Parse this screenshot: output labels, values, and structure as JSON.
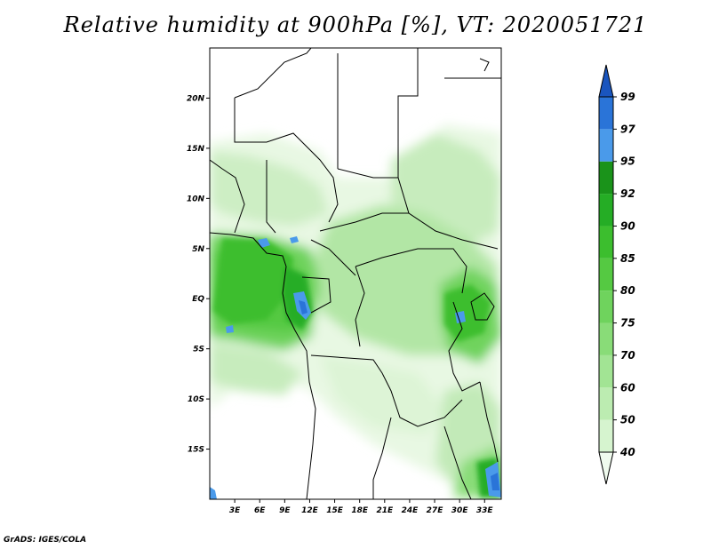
{
  "title": "Relative humidity at 900hPa [%], VT: 2020051721",
  "credit": "GrADS: IGES/COLA",
  "map": {
    "variable": "Relative humidity",
    "level": "900hPa",
    "lon_range": [
      0,
      35
    ],
    "lat_range": [
      -20,
      25
    ],
    "lon_ticks": [
      "3E",
      "6E",
      "9E",
      "12E",
      "15E",
      "18E",
      "21E",
      "24E",
      "27E",
      "30E",
      "33E"
    ],
    "lat_ticks": [
      "20N",
      "15N",
      "10N",
      "5N",
      "EQ",
      "5S",
      "10S",
      "15S"
    ]
  },
  "colorbar": {
    "levels": [
      "40",
      "50",
      "60",
      "70",
      "75",
      "80",
      "85",
      "90",
      "92",
      "95",
      "97",
      "99"
    ],
    "colors": [
      "#f0fbee",
      "#d6f4cf",
      "#bcecb1",
      "#a2e494",
      "#89dc78",
      "#6fd35d",
      "#55c942",
      "#3cbe2e",
      "#25ad25",
      "#1a931a",
      "#4a9aea",
      "#2a74d8",
      "#1a55be"
    ]
  }
}
